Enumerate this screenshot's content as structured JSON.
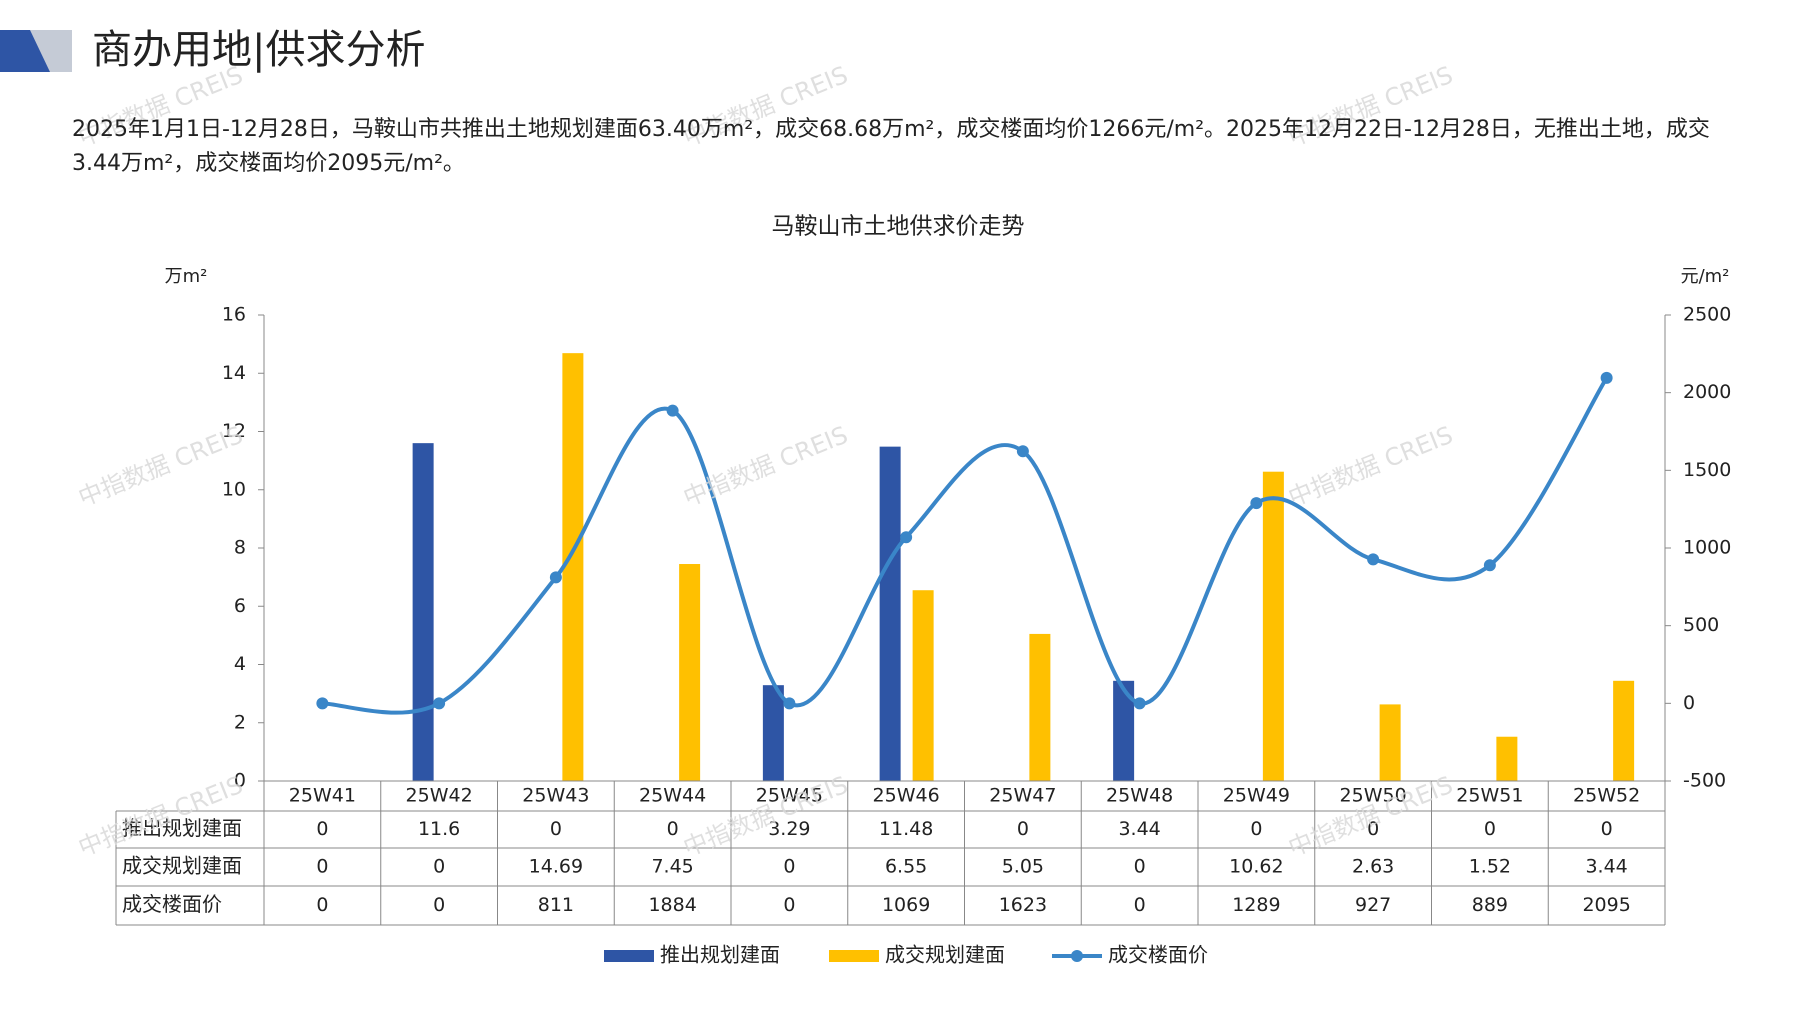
{
  "header": {
    "title": "商办用地|供求分析",
    "paragraph": "2025年1月1日-12月28日，马鞍山市共推出土地规划建面63.40万m²，成交68.68万m²，成交楼面均价1266元/m²。2025年12月22日-12月28日，无推出土地，成交3.44万m²，成交楼面均价2095元/m²。"
  },
  "watermark": "中指数据 CREIS",
  "chart_data": {
    "type": "bar",
    "title": "马鞍山市土地供求价走势",
    "y_label": "万m²",
    "y2_label": "元/m²",
    "categories": [
      "25W41",
      "25W42",
      "25W43",
      "25W44",
      "25W45",
      "25W46",
      "25W47",
      "25W48",
      "25W49",
      "25W50",
      "25W51",
      "25W52"
    ],
    "series": [
      {
        "name": "推出规划建面",
        "color": "#2e55a5",
        "values": [
          0,
          11.6,
          0,
          0,
          3.29,
          11.48,
          0,
          3.44,
          0,
          0,
          0,
          0
        ]
      },
      {
        "name": "成交规划建面",
        "color": "#ffc000",
        "values": [
          0,
          0,
          14.69,
          7.45,
          0,
          6.55,
          5.05,
          0,
          10.62,
          2.63,
          1.52,
          3.44
        ]
      },
      {
        "name": "成交楼面价",
        "color": "#3a86c8",
        "type": "line",
        "axis": "y2",
        "values": [
          0,
          0,
          811,
          1884,
          0,
          1069,
          1623,
          0,
          1289,
          927,
          889,
          2095
        ]
      }
    ],
    "ylim": [
      0,
      16
    ],
    "yticks": [
      0,
      2,
      4,
      6,
      8,
      10,
      12,
      14,
      16
    ],
    "y2lim": [
      -500,
      2500
    ],
    "y2ticks": [
      -500,
      0,
      500,
      1000,
      1500,
      2000,
      2500
    ]
  }
}
